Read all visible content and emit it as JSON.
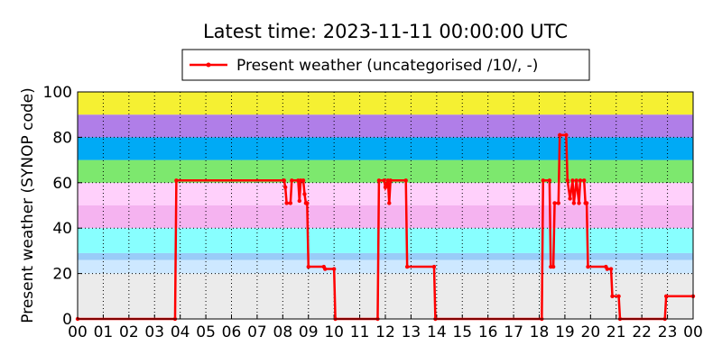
{
  "chart_data": {
    "type": "line",
    "title": "Latest time: 2023-11-11 00:00:00 UTC",
    "y_label": "Present weather (SYNOP code)",
    "xlim": [
      0,
      24
    ],
    "ylim": [
      0,
      100
    ],
    "xticks": [
      {
        "value": 0,
        "label": "00"
      },
      {
        "value": 1,
        "label": "01"
      },
      {
        "value": 2,
        "label": "02"
      },
      {
        "value": 3,
        "label": "03"
      },
      {
        "value": 4,
        "label": "04"
      },
      {
        "value": 5,
        "label": "05"
      },
      {
        "value": 6,
        "label": "06"
      },
      {
        "value": 7,
        "label": "07"
      },
      {
        "value": 8,
        "label": "08"
      },
      {
        "value": 9,
        "label": "09"
      },
      10,
      11,
      12,
      13,
      14,
      15,
      16,
      17,
      18,
      19,
      20,
      21,
      22,
      23,
      {
        "value": 24,
        "label": "00"
      }
    ],
    "yticks": [
      0,
      20,
      40,
      60,
      80,
      100
    ],
    "grid": true,
    "bands": [
      {
        "from": 0,
        "to": 20,
        "color": "#ebebeb"
      },
      {
        "from": 20,
        "to": 26,
        "color": "#cde8ff"
      },
      {
        "from": 26,
        "to": 29,
        "color": "#99ccf8"
      },
      {
        "from": 29,
        "to": 40,
        "color": "#88ffff"
      },
      {
        "from": 40,
        "to": 50,
        "color": "#f5b3f0"
      },
      {
        "from": 50,
        "to": 60,
        "color": "#ffd0fb"
      },
      {
        "from": 60,
        "to": 70,
        "color": "#7de86e"
      },
      {
        "from": 70,
        "to": 80,
        "color": "#00aaf5"
      },
      {
        "from": 80,
        "to": 90,
        "color": "#b07ee8"
      },
      {
        "from": 90,
        "to": 100,
        "color": "#f5f032"
      }
    ],
    "legend": "top",
    "series": [
      {
        "name": "Present weather (uncategorised /10/, -)",
        "color": "#ff0000",
        "x": [
          0,
          3.8,
          3.85,
          8.05,
          8.1,
          8.15,
          8.3,
          8.35,
          8.6,
          8.65,
          8.7,
          8.8,
          8.85,
          8.9,
          8.95,
          9.0,
          9.6,
          9.65,
          10.0,
          10.05,
          11.7,
          11.75,
          11.95,
          12.0,
          12.1,
          12.15,
          12.2,
          12.8,
          12.85,
          13.9,
          13.95,
          18.1,
          18.15,
          18.4,
          18.45,
          18.55,
          18.6,
          18.75,
          18.8,
          19.05,
          19.1,
          19.2,
          19.3,
          19.35,
          19.45,
          19.55,
          19.6,
          19.75,
          19.8,
          19.85,
          19.9,
          20.6,
          20.65,
          20.8,
          20.85,
          21.1,
          21.15,
          22.9,
          22.95,
          24
        ],
        "values": [
          0,
          0,
          61,
          61,
          58,
          51,
          51,
          61,
          61,
          52,
          61,
          61,
          55,
          51,
          51,
          23,
          23,
          22,
          22,
          0,
          0,
          61,
          61,
          58,
          61,
          51,
          61,
          61,
          23,
          23,
          0,
          0,
          61,
          61,
          23,
          23,
          51,
          51,
          81,
          81,
          61,
          53,
          61,
          51,
          61,
          51,
          61,
          61,
          51,
          51,
          23,
          23,
          22,
          22,
          10,
          10,
          0,
          0,
          10,
          10
        ]
      }
    ]
  }
}
